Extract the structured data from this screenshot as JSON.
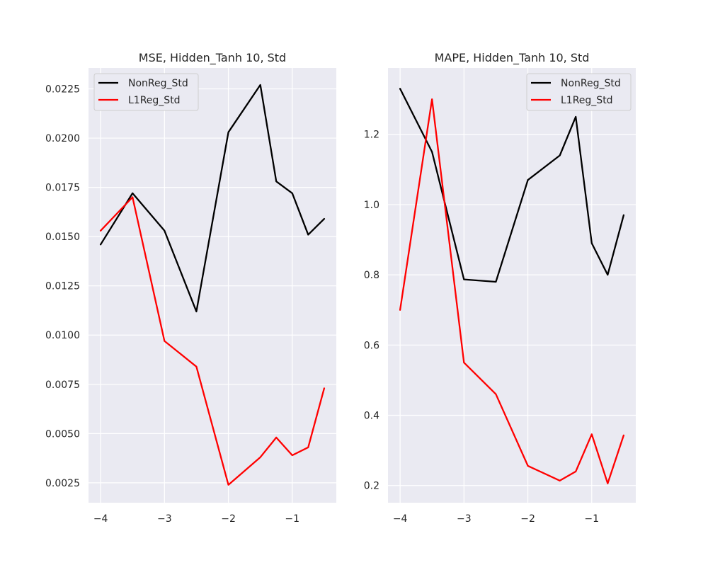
{
  "chart_data": [
    {
      "type": "line",
      "title": "MSE, Hidden_Tanh 10, Std",
      "xlabel": "",
      "ylabel": "",
      "xlim": [
        -4.19,
        -0.31
      ],
      "ylim": [
        0.00149,
        0.02356
      ],
      "x_ticks": [
        -4,
        -3,
        -2,
        -1
      ],
      "x_tick_labels": [
        "−4",
        "−3",
        "−2",
        "−1"
      ],
      "y_ticks": [
        0.0025,
        0.005,
        0.0075,
        0.01,
        0.0125,
        0.015,
        0.0175,
        0.02,
        0.0225
      ],
      "y_tick_labels": [
        "0.0025",
        "0.0050",
        "0.0075",
        "0.0100",
        "0.0125",
        "0.0150",
        "0.0175",
        "0.0200",
        "0.0225"
      ],
      "grid": true,
      "legend_position": "top-left",
      "series": [
        {
          "name": "NonReg_Std",
          "color": "#000000",
          "x": [
            -4,
            -3.5,
            -3,
            -2.5,
            -2,
            -1.5,
            -1.25,
            -1,
            -0.75,
            -0.5
          ],
          "y": [
            0.0146,
            0.0172,
            0.0153,
            0.0112,
            0.0203,
            0.0227,
            0.0178,
            0.0172,
            0.0151,
            0.0159
          ]
        },
        {
          "name": "L1Reg_Std",
          "color": "#ff0000",
          "x": [
            -4,
            -3.5,
            -3,
            -2.5,
            -2,
            -1.5,
            -1.25,
            -1,
            -0.75,
            -0.5
          ],
          "y": [
            0.0153,
            0.017,
            0.0097,
            0.0084,
            0.0024,
            0.0038,
            0.0048,
            0.0039,
            0.0043,
            0.0073
          ]
        }
      ]
    },
    {
      "type": "line",
      "title": "MAPE, Hidden_Tanh 10, Std",
      "xlabel": "",
      "ylabel": "",
      "xlim": [
        -4.19,
        -0.31
      ],
      "ylim": [
        0.151,
        1.389
      ],
      "x_ticks": [
        -4,
        -3,
        -2,
        -1
      ],
      "x_tick_labels": [
        "−4",
        "−3",
        "−2",
        "−1"
      ],
      "y_ticks": [
        0.2,
        0.4,
        0.6,
        0.8,
        1.0,
        1.2
      ],
      "y_tick_labels": [
        "0.2",
        "0.4",
        "0.6",
        "0.8",
        "1.0",
        "1.2"
      ],
      "grid": true,
      "legend_position": "top-right",
      "series": [
        {
          "name": "NonReg_Std",
          "color": "#000000",
          "x": [
            -4,
            -3.5,
            -3,
            -2.5,
            -2,
            -1.5,
            -1.25,
            -1,
            -0.75,
            -0.5
          ],
          "y": [
            1.33,
            1.15,
            0.787,
            0.78,
            1.07,
            1.14,
            1.25,
            0.89,
            0.8,
            0.97
          ]
        },
        {
          "name": "L1Reg_Std",
          "color": "#ff0000",
          "x": [
            -4,
            -3.5,
            -3,
            -2.5,
            -2,
            -1.5,
            -1.25,
            -1,
            -0.75,
            -0.5
          ],
          "y": [
            0.7,
            1.3,
            0.55,
            0.46,
            0.256,
            0.214,
            0.24,
            0.346,
            0.206,
            0.343
          ]
        }
      ]
    }
  ]
}
